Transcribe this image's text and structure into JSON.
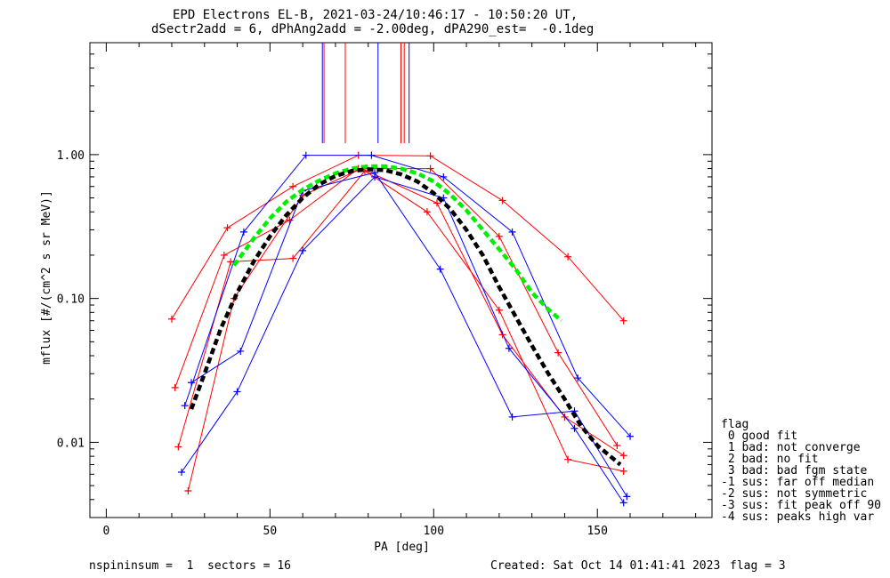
{
  "header": {
    "title_line1": "EPD Electrons EL-B, 2021-03-24/10:46:17 - 10:50:20 UT,",
    "title_line2": "dSectr2add = 6, dPhAng2add = -2.00deg, dPA290_est=  -0.1deg"
  },
  "footer": {
    "left": "nspininsum =  1  sectors = 16",
    "created": "Created: Sat Oct 14 01:41:41 2023",
    "flag": "flag = 3"
  },
  "legend": {
    "title": "flag",
    "items": [
      " 0 good fit",
      " 1 bad: not converge",
      " 2 bad: no fit",
      " 3 bad: bad fgm state",
      "-1 sus: far off median",
      "-2 sus: not symmetric",
      "-3 sus: fit peak off 90",
      "-4 sus: peaks high var"
    ]
  },
  "chart_data": {
    "type": "line",
    "xlabel": "PA [deg]",
    "ylabel": "mflux [#/(cm^2 s sr MeV)]",
    "xlim": [
      -5,
      185
    ],
    "ylim": [
      0.003,
      6
    ],
    "yscale": "log",
    "xticks": [
      0,
      50,
      100,
      150
    ],
    "yticks": [
      0.01,
      0.1,
      1.0
    ],
    "ytick_labels": [
      "0.01",
      "0.10",
      "1.00"
    ],
    "colors": {
      "red": "#ff0000",
      "blue": "#0000ff",
      "green": "#00ee00",
      "black": "#000000"
    },
    "series": [
      {
        "color": "red",
        "x": [
          20,
          37,
          57,
          77,
          99,
          121,
          141,
          158
        ],
        "y": [
          0.072,
          0.31,
          0.6,
          0.99,
          0.98,
          0.48,
          0.195,
          0.07
        ]
      },
      {
        "color": "red",
        "x": [
          21,
          36,
          56,
          77,
          99,
          120,
          138,
          156
        ],
        "y": [
          0.024,
          0.2,
          0.35,
          0.8,
          0.8,
          0.27,
          0.042,
          0.0095
        ]
      },
      {
        "color": "red",
        "x": [
          22,
          38,
          57,
          79,
          98,
          120,
          141,
          158
        ],
        "y": [
          0.0093,
          0.18,
          0.19,
          0.77,
          0.4,
          0.083,
          0.0076,
          0.0063
        ]
      },
      {
        "color": "red",
        "x": [
          25,
          39,
          60,
          78,
          101,
          121,
          140,
          158
        ],
        "y": [
          0.0046,
          0.1,
          0.52,
          0.8,
          0.46,
          0.056,
          0.015,
          0.0081
        ]
      },
      {
        "color": "blue",
        "x": [
          24,
          42,
          61,
          81,
          103,
          124,
          144,
          160
        ],
        "y": [
          0.018,
          0.29,
          0.99,
          0.99,
          0.7,
          0.29,
          0.028,
          0.011
        ]
      },
      {
        "color": "blue",
        "x": [
          26,
          41,
          60,
          82,
          102,
          124,
          143,
          159
        ],
        "y": [
          0.026,
          0.043,
          0.56,
          0.75,
          0.16,
          0.015,
          0.0165,
          0.0042
        ]
      },
      {
        "color": "blue",
        "x": [
          23,
          40,
          60,
          82,
          103,
          123,
          143,
          158
        ],
        "y": [
          0.0062,
          0.0225,
          0.215,
          0.7,
          0.5,
          0.045,
          0.0125,
          0.0038
        ]
      }
    ],
    "fits": [
      {
        "color": "green",
        "style": "dashed",
        "x": [
          39,
          45,
          50,
          55,
          60,
          65,
          70,
          75,
          80,
          85,
          90,
          95,
          100,
          105,
          110,
          115,
          120,
          125,
          130,
          135,
          139
        ],
        "y": [
          0.17,
          0.26,
          0.36,
          0.47,
          0.57,
          0.66,
          0.74,
          0.8,
          0.83,
          0.83,
          0.8,
          0.74,
          0.65,
          0.53,
          0.41,
          0.3,
          0.22,
          0.16,
          0.11,
          0.084,
          0.07
        ]
      },
      {
        "color": "black",
        "style": "dashed",
        "x": [
          26,
          30,
          35,
          40,
          45,
          50,
          55,
          60,
          65,
          70,
          75,
          80,
          85,
          90,
          95,
          100,
          105,
          110,
          115,
          120,
          125,
          130,
          135,
          140,
          145,
          150,
          157
        ],
        "y": [
          0.017,
          0.03,
          0.062,
          0.11,
          0.18,
          0.27,
          0.38,
          0.5,
          0.62,
          0.71,
          0.77,
          0.79,
          0.78,
          0.73,
          0.65,
          0.54,
          0.42,
          0.3,
          0.2,
          0.12,
          0.075,
          0.047,
          0.03,
          0.02,
          0.013,
          0.0095,
          0.007
        ]
      }
    ],
    "vertical_markers": [
      {
        "color": "blue",
        "x": 66
      },
      {
        "color": "red",
        "x": 66.5
      },
      {
        "color": "red",
        "x": 73
      },
      {
        "color": "blue",
        "x": 83
      },
      {
        "color": "red",
        "x": 90
      },
      {
        "color": "red",
        "x": 91
      },
      {
        "color": "blue",
        "x": 92.5
      }
    ],
    "vertical_marker_range": [
      1.2,
      6
    ]
  }
}
